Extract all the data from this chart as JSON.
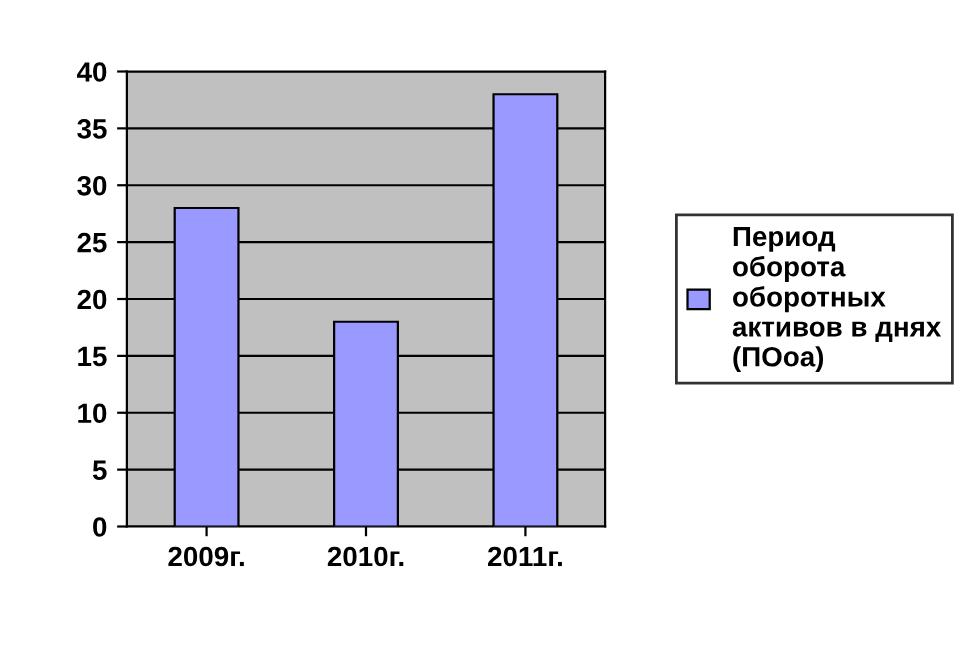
{
  "chart_data": {
    "type": "bar",
    "categories": [
      "2009г.",
      "2010г.",
      "2011г."
    ],
    "series": [
      {
        "name": "Период\nоборота\nоборотных\nактивов в днях\n(ПОоа)",
        "color": "#9999ff",
        "values": [
          28,
          18,
          38
        ]
      }
    ],
    "ylim": [
      0,
      40
    ],
    "yticks": [
      0,
      5,
      10,
      15,
      20,
      25,
      30,
      35,
      40
    ],
    "grid": "y",
    "legend": "right"
  }
}
